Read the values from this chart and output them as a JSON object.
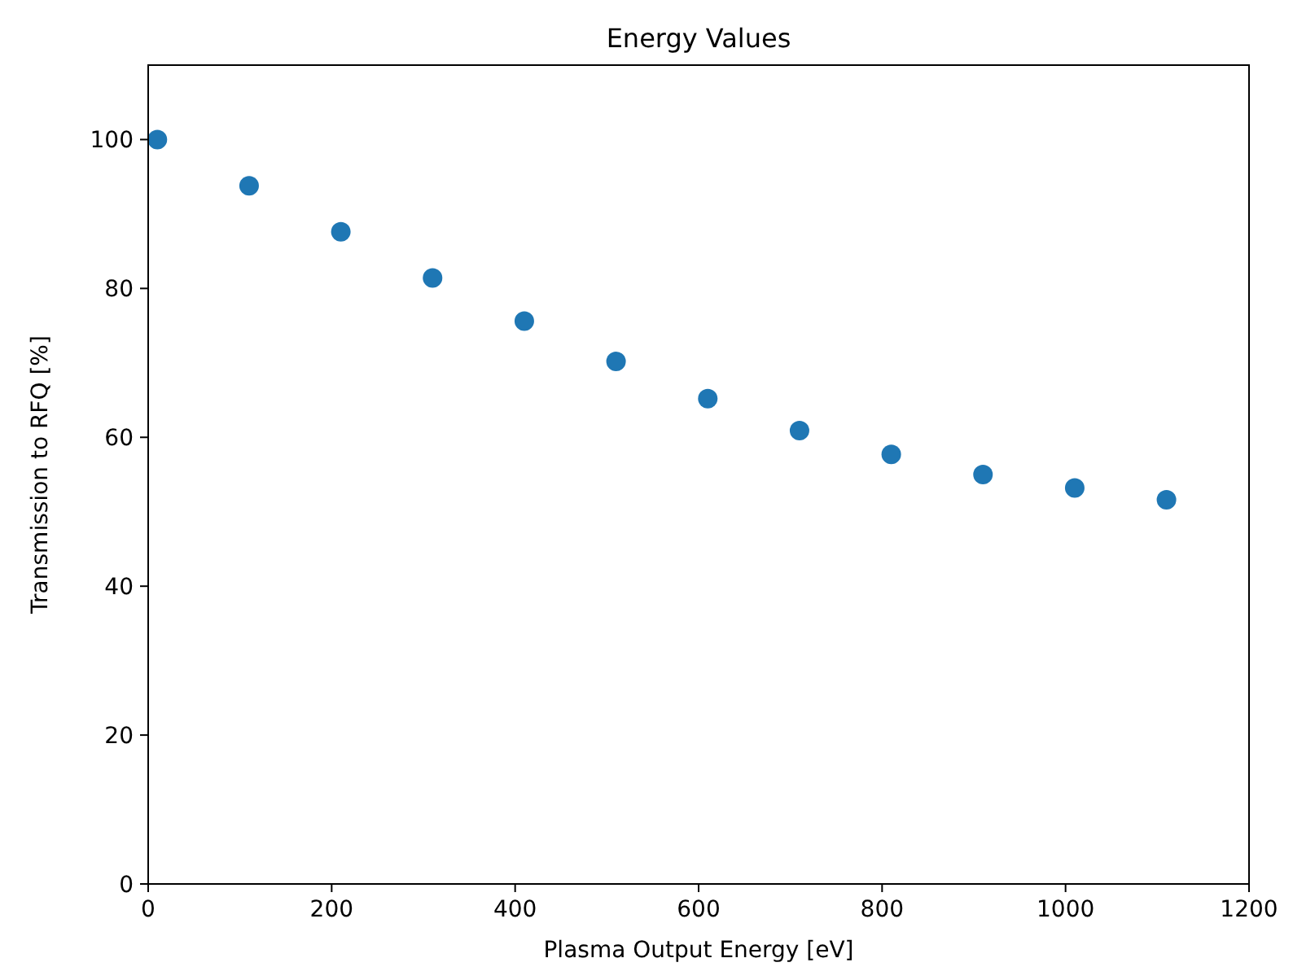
{
  "chart_data": {
    "type": "scatter",
    "title": "Energy Values",
    "xlabel": "Plasma Output Energy [eV]",
    "ylabel": "Transmission to RFQ [%]",
    "x": [
      10,
      110,
      210,
      310,
      410,
      510,
      610,
      710,
      810,
      910,
      1010,
      1110
    ],
    "series": [
      {
        "color": "#1f77b4",
        "values": [
          100,
          93.8,
          87.6,
          81.4,
          75.6,
          70.2,
          65.2,
          60.9,
          57.7,
          55.0,
          53.2,
          51.6
        ]
      }
    ],
    "xlim": [
      0,
      1200
    ],
    "xticks": [
      0,
      200,
      400,
      600,
      800,
      1000,
      1200
    ],
    "ylim": [
      0,
      110
    ],
    "yticks": [
      0,
      20,
      40,
      60,
      80,
      100
    ],
    "marker": "circle",
    "grid": false
  }
}
